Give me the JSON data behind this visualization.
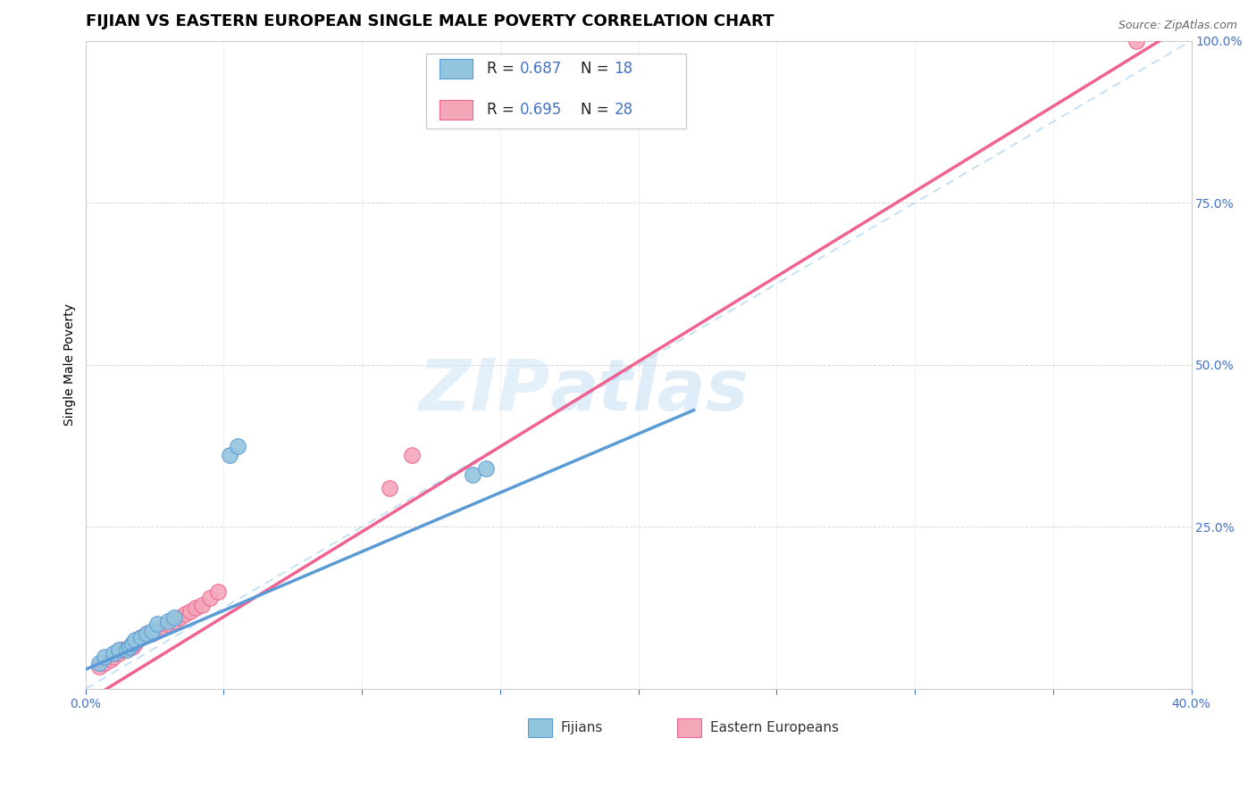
{
  "title": "FIJIAN VS EASTERN EUROPEAN SINGLE MALE POVERTY CORRELATION CHART",
  "source": "Source: ZipAtlas.com",
  "ylabel": "Single Male Poverty",
  "xlim": [
    0.0,
    0.4
  ],
  "ylim": [
    0.0,
    1.0
  ],
  "xticks": [
    0.0,
    0.05,
    0.1,
    0.15,
    0.2,
    0.25,
    0.3,
    0.35,
    0.4
  ],
  "yticks": [
    0.0,
    0.25,
    0.5,
    0.75,
    1.0
  ],
  "fijian_color": "#92c5de",
  "eastern_color": "#f4a7b9",
  "fijian_line_color": "#5b9bd5",
  "eastern_line_color": "#f06292",
  "diagonal_color": "#aaaaaa",
  "R_fijian": 0.687,
  "N_fijian": 18,
  "R_eastern": 0.695,
  "N_eastern": 28,
  "fijian_x": [
    0.005,
    0.007,
    0.01,
    0.012,
    0.015,
    0.016,
    0.017,
    0.018,
    0.02,
    0.022,
    0.024,
    0.026,
    0.03,
    0.032,
    0.052,
    0.055,
    0.14,
    0.145
  ],
  "fijian_y": [
    0.04,
    0.05,
    0.055,
    0.06,
    0.06,
    0.065,
    0.07,
    0.075,
    0.08,
    0.085,
    0.09,
    0.1,
    0.105,
    0.11,
    0.36,
    0.375,
    0.33,
    0.34
  ],
  "eastern_x": [
    0.005,
    0.007,
    0.009,
    0.01,
    0.012,
    0.013,
    0.015,
    0.016,
    0.017,
    0.018,
    0.019,
    0.02,
    0.022,
    0.024,
    0.026,
    0.028,
    0.03,
    0.032,
    0.034,
    0.036,
    0.038,
    0.04,
    0.042,
    0.045,
    0.048,
    0.11,
    0.118,
    0.38
  ],
  "eastern_y": [
    0.035,
    0.04,
    0.045,
    0.05,
    0.055,
    0.06,
    0.06,
    0.065,
    0.065,
    0.07,
    0.075,
    0.08,
    0.085,
    0.085,
    0.09,
    0.095,
    0.1,
    0.105,
    0.11,
    0.115,
    0.12,
    0.125,
    0.13,
    0.14,
    0.15,
    0.31,
    0.36,
    1.0
  ],
  "watermark_zip": "ZIP",
  "watermark_atlas": "atlas",
  "title_fontsize": 13,
  "axis_label_fontsize": 10,
  "tick_fontsize": 10,
  "source_fontsize": 9,
  "background_color": "#ffffff",
  "grid_color": "#cccccc",
  "tick_color": "#4472c4"
}
